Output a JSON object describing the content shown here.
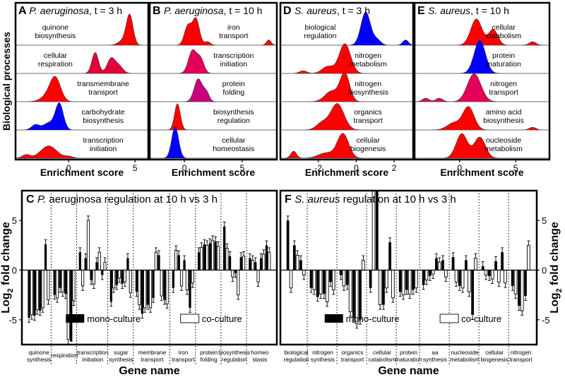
{
  "chart_data": [
    {
      "type": "ridgeline",
      "panel": "A",
      "organism": "P. aeruginosa",
      "time_label": ", t = 3 h",
      "xlabel": "Enrichment score",
      "ylabel": "Biological processes",
      "xlim": [
        -4,
        6
      ],
      "xticks": [
        0,
        5
      ],
      "categories": [
        {
          "label": [
            "quinone",
            "biosynthesis"
          ],
          "color": "#ff0000",
          "peaks": [
            {
              "mu": 4.6,
              "s": 0.25,
              "h": 1.6
            },
            {
              "mu": 4.2,
              "s": 0.4,
              "h": 0.3
            }
          ]
        },
        {
          "label": [
            "cellular",
            "respiration"
          ],
          "color": "#e4003a",
          "peaks": [
            {
              "mu": 2.0,
              "s": 0.25,
              "h": 1.2
            },
            {
              "mu": 3.2,
              "s": 0.3,
              "h": 0.85
            },
            {
              "mu": 3.8,
              "s": 0.3,
              "h": 0.4
            }
          ]
        },
        {
          "label": [
            "transmembrane",
            "transport"
          ],
          "color": "#ff0000",
          "peaks": [
            {
              "mu": -1.0,
              "s": 0.4,
              "h": 1.3
            },
            {
              "mu": -1.6,
              "s": 0.5,
              "h": 0.3
            }
          ]
        },
        {
          "label": [
            "carbohydrate",
            "biosynthesis"
          ],
          "color": "#0000ff",
          "peaks": [
            {
              "mu": -0.7,
              "s": 0.3,
              "h": 1.5
            },
            {
              "mu": -2.5,
              "s": 0.3,
              "h": 0.3
            },
            {
              "mu": -1.5,
              "s": 0.4,
              "h": 0.4
            }
          ]
        },
        {
          "label": [
            "transcription",
            "initiation"
          ],
          "color": "#ff0000",
          "peaks": [
            {
              "mu": -1.5,
              "s": 0.6,
              "h": 0.7
            },
            {
              "mu": -3.2,
              "s": 0.3,
              "h": 0.2
            },
            {
              "mu": 0.0,
              "s": 0.3,
              "h": 0.1
            }
          ]
        }
      ]
    },
    {
      "type": "ridgeline",
      "panel": "B",
      "organism": "P. aeruginosa",
      "time_label": ", t = 10 h",
      "xlabel": "Enrichment score",
      "xlim": [
        -3,
        8
      ],
      "xticks": [
        0,
        5
      ],
      "categories": [
        {
          "label": [
            "iron",
            "transport"
          ],
          "color": "#ff0000",
          "peaks": [
            {
              "mu": 1.0,
              "s": 0.3,
              "h": 1.5
            },
            {
              "mu": 0.3,
              "s": 0.3,
              "h": 1.1
            },
            {
              "mu": 2.0,
              "s": 0.25,
              "h": 0.2
            },
            {
              "mu": 7.3,
              "s": 0.2,
              "h": 0.3
            }
          ]
        },
        {
          "label": [
            "transcription",
            "initiation"
          ],
          "color": "#e4005a",
          "peaks": [
            {
              "mu": 0.7,
              "s": 0.35,
              "h": 1.3
            },
            {
              "mu": 1.4,
              "s": 0.3,
              "h": 0.8
            }
          ]
        },
        {
          "label": [
            "protein",
            "folding"
          ],
          "color": "#c8007a",
          "peaks": [
            {
              "mu": 1.2,
              "s": 0.35,
              "h": 1.3
            },
            {
              "mu": 1.9,
              "s": 0.25,
              "h": 0.5
            }
          ]
        },
        {
          "label": [
            "biosynthesis",
            "regulation"
          ],
          "color": "#ff0000",
          "peaks": [
            {
              "mu": -0.6,
              "s": 0.25,
              "h": 1.5
            }
          ]
        },
        {
          "label": [
            "cellular",
            "homeostasis"
          ],
          "color": "#0000ff",
          "peaks": [
            {
              "mu": -0.8,
              "s": 0.3,
              "h": 1.8
            }
          ]
        }
      ]
    },
    {
      "type": "ridgeline",
      "panel": "D",
      "organism": "S. aureus",
      "time_label": ", t = 3 h",
      "xlabel": "Enrichment score",
      "xlim": [
        -4,
        3
      ],
      "xticks": [
        -2,
        0,
        2
      ],
      "categories": [
        {
          "label": [
            "biological",
            "regulation"
          ],
          "color": "#0000ff",
          "peaks": [
            {
              "mu": 0.5,
              "s": 0.25,
              "h": 1.9
            },
            {
              "mu": 1.1,
              "s": 0.2,
              "h": 0.3
            },
            {
              "mu": 2.6,
              "s": 0.15,
              "h": 0.3
            }
          ]
        },
        {
          "label": [
            "nitrogen",
            "metabolism"
          ],
          "color": "#ff0000",
          "peaks": [
            {
              "mu": -0.6,
              "s": 0.3,
              "h": 1.7
            },
            {
              "mu": -1.5,
              "s": 0.3,
              "h": 0.4
            },
            {
              "mu": -2.8,
              "s": 0.2,
              "h": 0.15
            }
          ]
        },
        {
          "label": [
            "nitrogen",
            "biosynthesis"
          ],
          "color": "#ff0000",
          "peaks": [
            {
              "mu": -0.6,
              "s": 0.25,
              "h": 1.6
            },
            {
              "mu": -1.3,
              "s": 0.35,
              "h": 0.6
            }
          ]
        },
        {
          "label": [
            "organics",
            "transport"
          ],
          "color": "#ff0000",
          "peaks": [
            {
              "mu": -1.0,
              "s": 0.35,
              "h": 1.5
            },
            {
              "mu": -1.8,
              "s": 0.3,
              "h": 0.4
            }
          ]
        },
        {
          "label": [
            "cellular",
            "biogenesis"
          ],
          "color": "#ff0000",
          "peaks": [
            {
              "mu": -0.7,
              "s": 0.3,
              "h": 1.4
            },
            {
              "mu": -3.3,
              "s": 0.15,
              "h": 0.4
            },
            {
              "mu": -1.6,
              "s": 0.4,
              "h": 0.3
            }
          ]
        }
      ]
    },
    {
      "type": "ridgeline",
      "panel": "E",
      "organism": "S. aureus",
      "time_label": ", t = 10 h",
      "xlabel": "Enrichment score",
      "xlim": [
        -4,
        8
      ],
      "xticks": [
        0,
        5
      ],
      "categories": [
        {
          "label": [
            "cellular",
            "catabolism"
          ],
          "color": "#ff0000",
          "peaks": [
            {
              "mu": 1.5,
              "s": 0.5,
              "h": 1.5
            },
            {
              "mu": 3.0,
              "s": 0.4,
              "h": 0.9
            },
            {
              "mu": 6.5,
              "s": 0.3,
              "h": 0.2
            }
          ]
        },
        {
          "label": [
            "protein",
            "maturation"
          ],
          "color": "#0000ff",
          "peaks": [
            {
              "mu": 1.8,
              "s": 0.5,
              "h": 1.9
            }
          ]
        },
        {
          "label": [
            "nitrogen",
            "transport"
          ],
          "color": "#e4005a",
          "peaks": [
            {
              "mu": 1.3,
              "s": 0.6,
              "h": 1.6
            },
            {
              "mu": -3.0,
              "s": 0.3,
              "h": 0.2
            },
            {
              "mu": -1.8,
              "s": 0.3,
              "h": 0.2
            }
          ]
        },
        {
          "label": [
            "amino acid",
            "biosynthesis"
          ],
          "color": "#ff0000",
          "peaks": [
            {
              "mu": 0.8,
              "s": 0.5,
              "h": 1.3
            },
            {
              "mu": -0.5,
              "s": 0.6,
              "h": 0.4
            },
            {
              "mu": 6.5,
              "s": 0.3,
              "h": 0.15
            }
          ]
        },
        {
          "label": [
            "nucleoside",
            "metabolism"
          ],
          "color": "#ff0000",
          "peaks": [
            {
              "mu": 0.2,
              "s": 0.5,
              "h": 1.4
            },
            {
              "mu": 1.8,
              "s": 0.5,
              "h": 1.2
            }
          ]
        }
      ]
    },
    {
      "type": "bar",
      "panel": "C",
      "title": " aeruginosa regulation at 10 h vs 3 h",
      "title_italic": "P.",
      "xlabel": "Gene name",
      "ylabel": "Log",
      "ylabel_sub": "2",
      "ylabel_rest": " fold change",
      "ylim": [
        -7.5,
        8
      ],
      "yticks": [
        -5,
        0,
        5
      ],
      "legend": {
        "mono": "mono-culture",
        "co": "co-culture"
      },
      "groups": [
        {
          "label": [
            "quinone",
            "synthesis"
          ],
          "bars": [
            [
              -4.8,
              -4.5
            ],
            [
              -4.6,
              -4.0
            ],
            [
              -4.1,
              -3.8
            ],
            [
              2.6,
              -3.0
            ]
          ]
        },
        {
          "label": [
            "respiration"
          ],
          "bars": [
            [
              -2.5,
              -2.8
            ],
            [
              -1.8,
              -2.2
            ],
            [
              -2.4,
              -7.0
            ],
            [
              -7.2,
              -3.1
            ]
          ]
        },
        {
          "label": [
            "transcription",
            "initiation"
          ],
          "bars": [
            [
              1.8,
              -1.6
            ],
            [
              1.2,
              5.0
            ],
            [
              -1.0,
              -1.4
            ],
            [
              0.8,
              1.8
            ],
            [
              -0.5,
              0.8
            ]
          ]
        },
        {
          "label": [
            "sugar",
            "synthesis"
          ],
          "bars": [
            [
              -3.2,
              -1.8
            ],
            [
              -1.5,
              -0.8
            ],
            [
              -1.4,
              -1.2
            ],
            [
              1.2,
              -2.3
            ]
          ]
        },
        {
          "label": [
            "membrane",
            "transport"
          ],
          "bars": [
            [
              -2.2,
              -3.5
            ],
            [
              -4.4,
              -3.8
            ],
            [
              -3.5,
              -3.8
            ],
            [
              -2.8,
              1.8
            ],
            [
              1.5,
              -2.6
            ],
            [
              -3.0,
              -3.4
            ]
          ]
        },
        {
          "label": [
            "iron",
            "transport"
          ],
          "bars": [
            [
              -1.8,
              2.0
            ],
            [
              1.5,
              -1.6
            ],
            [
              1.0,
              -2.0
            ],
            [
              -3.8,
              -1.3
            ]
          ]
        },
        {
          "label": [
            "protein",
            "folding"
          ],
          "bars": [
            [
              1.8,
              2.3
            ],
            [
              2.6,
              2.5
            ],
            [
              2.7,
              3.0
            ],
            [
              2.9,
              2.4
            ]
          ]
        },
        {
          "label": [
            "biosynthesis",
            "regulation"
          ],
          "bars": [
            [
              4.4,
              2.2
            ],
            [
              1.4,
              -0.7
            ],
            [
              -0.3,
              -2.5
            ],
            [
              1.3,
              1.4
            ]
          ]
        },
        {
          "label": [
            "homeo",
            "stasis"
          ],
          "bars": [
            [
              1.2,
              1.0
            ],
            [
              0.8,
              -1.2
            ],
            [
              1.2,
              1.6
            ],
            [
              2.5,
              1.8
            ]
          ]
        }
      ]
    },
    {
      "type": "bar",
      "panel": "F",
      "title": " regulation at 10 h vs 3 h",
      "title_italic": "S. aureus",
      "xlabel": "Gene name",
      "ylabel": "Log",
      "ylabel_sub": "2",
      "ylabel_rest": " fold change",
      "ylim": [
        -7.5,
        8
      ],
      "yticks": [
        -5,
        0,
        5
      ],
      "legend": {
        "mono": "mono-culture",
        "co": "co-culture"
      },
      "groups": [
        {
          "label": [
            "biological",
            "regulation"
          ],
          "bars": [
            [
              5.0,
              -1.8
            ],
            [
              2.5,
              1.5
            ],
            [
              1.0,
              -0.5
            ]
          ]
        },
        {
          "label": [
            "nitrogen",
            "synthesis"
          ],
          "bars": [
            [
              -1.8,
              -2.0
            ],
            [
              -2.7,
              -2.4
            ],
            [
              -2.4,
              -3.2
            ],
            [
              -1.2,
              -2.0
            ]
          ]
        },
        {
          "label": [
            "organics",
            "transport"
          ],
          "bars": [
            [
              -0.5,
              -1.6
            ],
            [
              -1.5,
              -4.2
            ],
            [
              -4.8,
              -5.4
            ],
            [
              -5.0,
              1.0
            ]
          ]
        },
        {
          "label": [
            "cellular",
            "catabolism"
          ],
          "bars": [
            [
              -1.8,
              8.0
            ],
            [
              8.0,
              -3.5
            ],
            [
              -3.5,
              -1.8
            ],
            [
              2.8,
              -2.8
            ]
          ]
        },
        {
          "label": [
            "protein",
            "maturation"
          ],
          "bars": [
            [
              -2.2,
              -2.5
            ],
            [
              -2.0,
              -2.4
            ],
            [
              -2.0,
              -1.8
            ]
          ]
        },
        {
          "label": [
            "aa",
            "synthesis"
          ],
          "bars": [
            [
              -1.5,
              -1.0
            ],
            [
              -0.6,
              -0.4
            ],
            [
              1.2,
              0.8
            ],
            [
              1.0,
              -0.7
            ]
          ]
        },
        {
          "label": [
            "nucleoside",
            "metabolism"
          ],
          "bars": [
            [
              1.3,
              -1.2
            ],
            [
              -1.6,
              -1.8
            ],
            [
              1.0,
              -2.2
            ],
            [
              -4.5,
              1.2
            ]
          ]
        },
        {
          "label": [
            "cellular",
            "biogenesis"
          ],
          "bars": [
            [
              0.4,
              -0.5
            ],
            [
              -0.6,
              -0.9
            ],
            [
              0.9,
              -1.2
            ],
            [
              1.8,
              -1.3
            ]
          ]
        },
        {
          "label": [
            "nitrogen",
            "transport"
          ],
          "bars": [
            [
              -1.6,
              -2.4
            ],
            [
              -3.6,
              -4.1
            ],
            [
              -2.6,
              2.5
            ]
          ]
        }
      ]
    }
  ]
}
